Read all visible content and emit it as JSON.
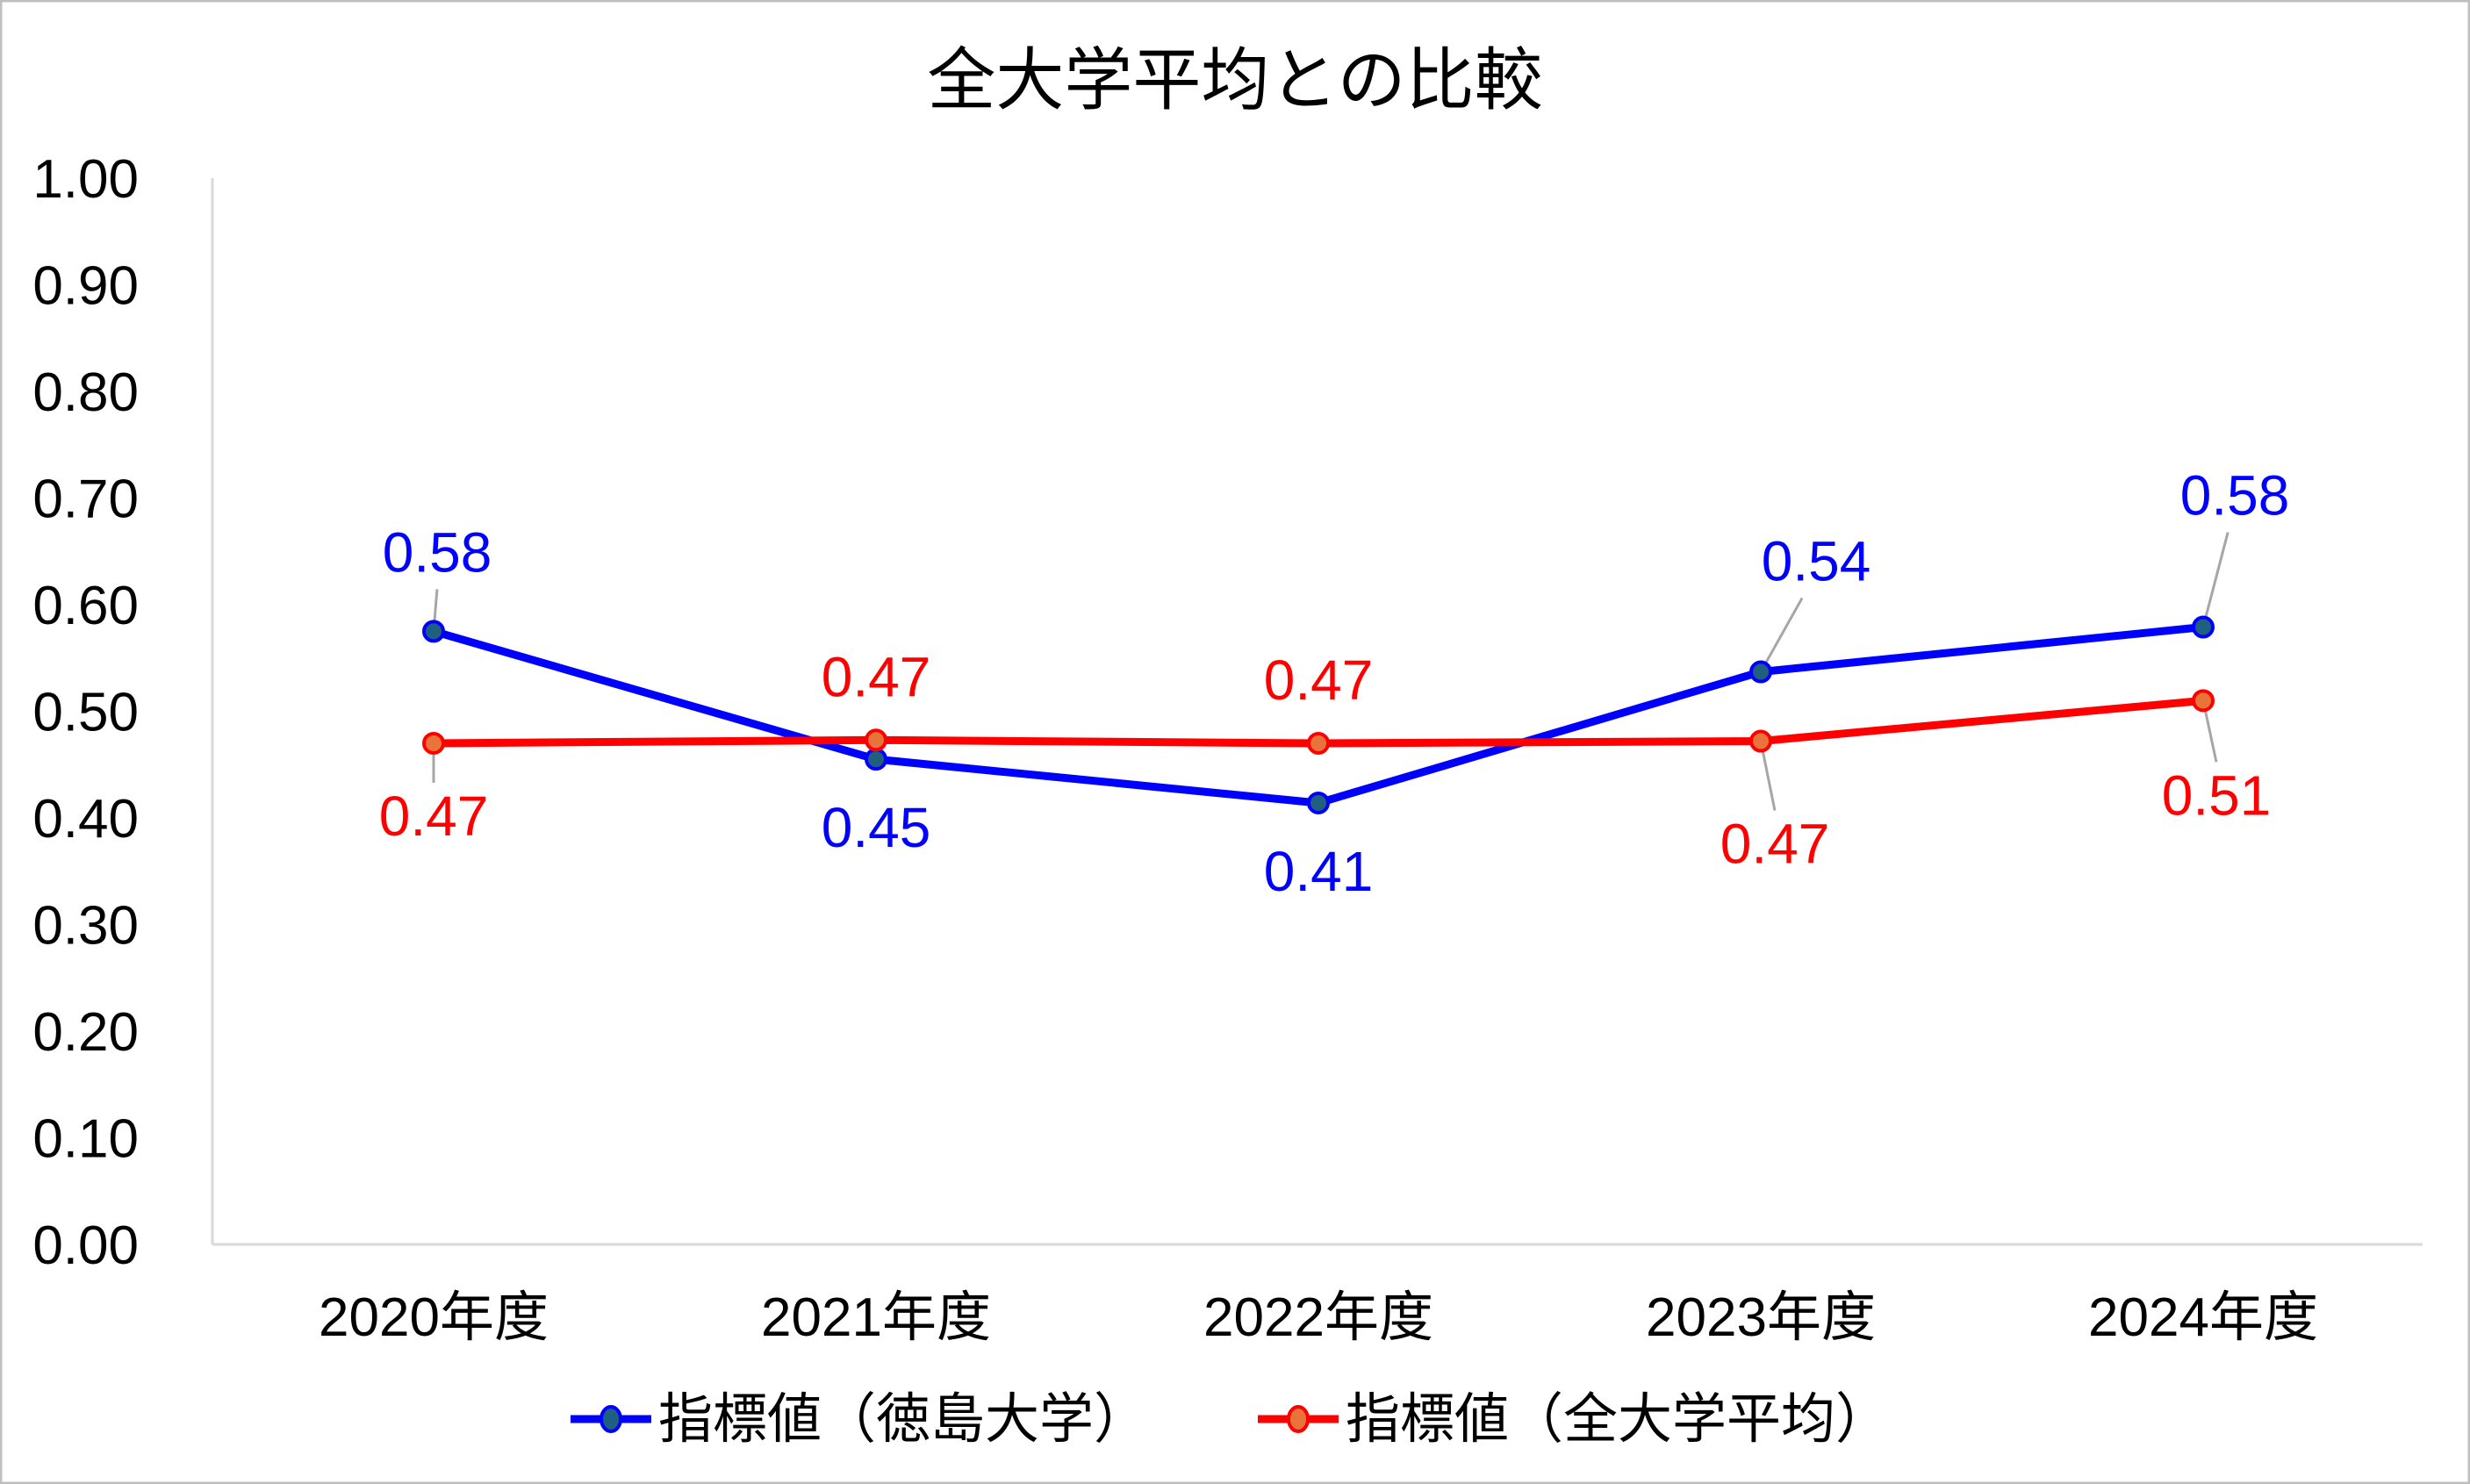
{
  "chart_data": {
    "type": "line",
    "title": "全大学平均との比較",
    "categories": [
      "2020年度",
      "2021年度",
      "2022年度",
      "2023年度",
      "2024年度"
    ],
    "ylim": [
      0,
      1.0
    ],
    "yticks": [
      "0.00",
      "0.10",
      "0.20",
      "0.30",
      "0.40",
      "0.50",
      "0.60",
      "0.70",
      "0.80",
      "0.90",
      "1.00"
    ],
    "grid": false,
    "legend": "bottom",
    "series": [
      {
        "name": "指標値（徳島大学）",
        "values": [
          0.575,
          0.455,
          0.414,
          0.537,
          0.579
        ],
        "labels": [
          "0.58",
          "0.45",
          "0.41",
          "0.54",
          "0.58"
        ],
        "line_color": "#0000FF",
        "marker_color": "#1F5F7F"
      },
      {
        "name": "指標値（全大学平均）",
        "values": [
          0.47,
          0.473,
          0.47,
          0.472,
          0.51
        ],
        "labels": [
          "0.47",
          "0.47",
          "0.47",
          "0.47",
          "0.51"
        ],
        "line_color": "#FF0000",
        "marker_color": "#E8743B"
      }
    ]
  }
}
